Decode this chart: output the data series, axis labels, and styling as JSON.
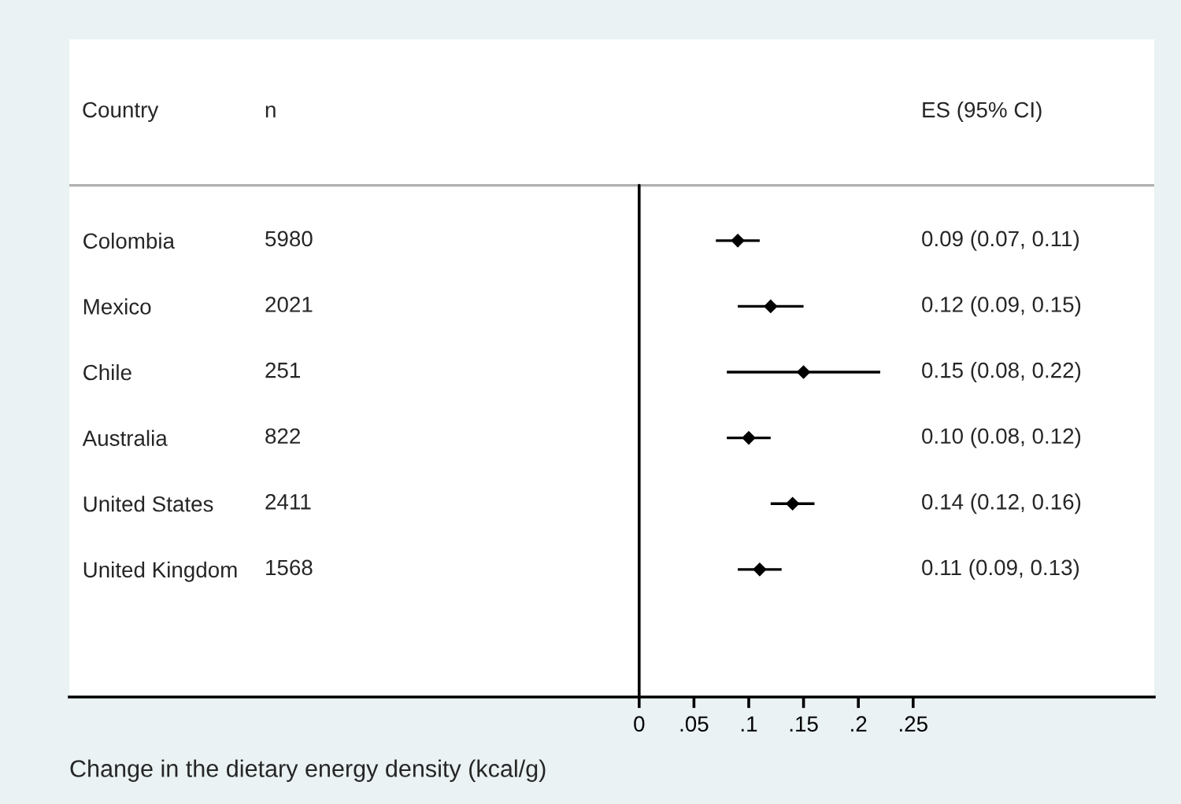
{
  "chart_data": {
    "type": "scatter",
    "orientation": "horizontal",
    "xlabel": "Change in the dietary energy density (kcal/g)",
    "categories": [
      "Colombia",
      "Mexico",
      "Chile",
      "Australia",
      "United States",
      "United Kingdom"
    ],
    "values": [
      0.09,
      0.12,
      0.15,
      0.1,
      0.14,
      0.11
    ],
    "errors": [
      [
        0.07,
        0.11
      ],
      [
        0.09,
        0.15
      ],
      [
        0.08,
        0.22
      ],
      [
        0.08,
        0.12
      ],
      [
        0.12,
        0.16
      ],
      [
        0.09,
        0.13
      ]
    ],
    "color": "#000000",
    "marker": "diamond",
    "xlim": [
      -0.52,
      0.47
    ],
    "xticks": [
      0,
      {
        "value": 0.05,
        "label": ".05"
      },
      {
        "value": 0.1,
        "label": ".1"
      },
      {
        "value": 0.15,
        "label": ".15"
      },
      {
        "value": 0.2,
        "label": ".2"
      },
      {
        "value": 0.25,
        "label": ".25"
      }
    ],
    "ref_lines": [
      {
        "axis": "x",
        "value": 0,
        "color": "#000000"
      }
    ],
    "grid": false,
    "legend": false,
    "annotations": [
      "Country",
      "n",
      "ES (95% CI)",
      "5980",
      "2021",
      "251",
      "822",
      "2411",
      "1568",
      "0.09 (0.07, 0.11)",
      "0.12 (0.09, 0.15)",
      "0.15 (0.08, 0.22)",
      "0.10 (0.08, 0.12)",
      "0.14 (0.12, 0.16)",
      "0.11 (0.09, 0.13)"
    ]
  }
}
